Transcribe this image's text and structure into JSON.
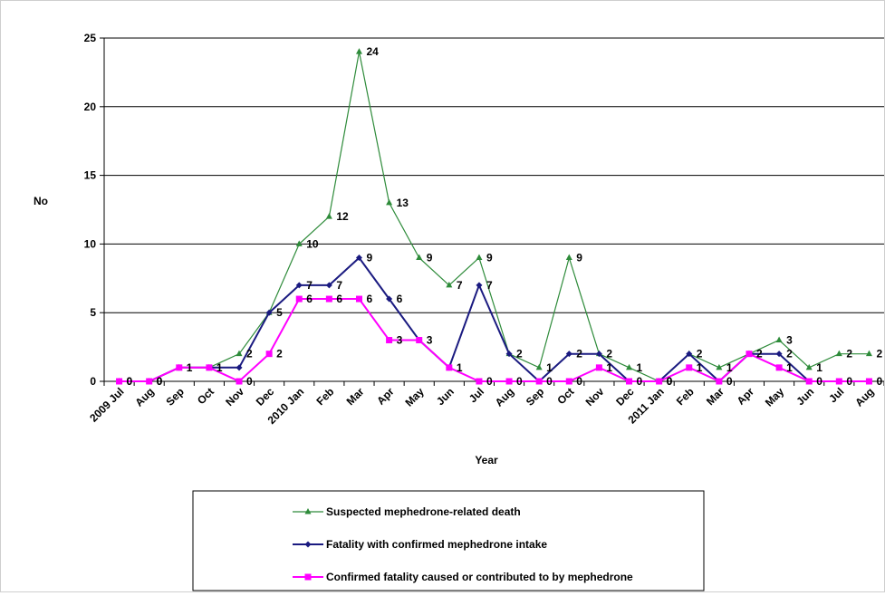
{
  "chart_data": {
    "type": "line",
    "title": "",
    "xlabel": "Year",
    "ylabel": "No",
    "ylim": [
      0,
      25
    ],
    "yticks": [
      0,
      5,
      10,
      15,
      20,
      25
    ],
    "grid": "horizontal",
    "legend_position": "bottom",
    "categories": [
      "2009 Jul",
      "Aug",
      "Sep",
      "Oct",
      "Nov",
      "Dec",
      "2010 Jan",
      "Feb",
      "Mar",
      "Apr",
      "May",
      "Jun",
      "Jul",
      "Aug",
      "Sep",
      "Oct",
      "Nov",
      "Dec",
      "2011 Jan",
      "Feb",
      "Mar",
      "Apr",
      "May",
      "Jun",
      "Jul",
      "Aug"
    ],
    "series": [
      {
        "name": "Suspected mephedrone-related  death",
        "color": "#2e8b3a",
        "marker": "triangle",
        "values": [
          0,
          0,
          1,
          1,
          2,
          5,
          10,
          12,
          24,
          13,
          9,
          7,
          9,
          2,
          1,
          9,
          2,
          1,
          0,
          2,
          1,
          2,
          3,
          1,
          2,
          2
        ],
        "labels": [
          0,
          0,
          1,
          1,
          2,
          null,
          10,
          12,
          24,
          13,
          9,
          7,
          9,
          2,
          1,
          9,
          2,
          1,
          0,
          2,
          1,
          2,
          3,
          1,
          2,
          2
        ]
      },
      {
        "name": "Fatality with confirmed mephedrone intake",
        "color": "#1a1a80",
        "marker": "diamond",
        "values": [
          0,
          0,
          1,
          1,
          1,
          5,
          7,
          7,
          9,
          6,
          3,
          1,
          7,
          2,
          0,
          2,
          2,
          0,
          0,
          2,
          0,
          2,
          2,
          0,
          0,
          0
        ],
        "labels": [
          null,
          null,
          null,
          null,
          null,
          5,
          7,
          7,
          9,
          6,
          null,
          null,
          7,
          null,
          null,
          2,
          null,
          null,
          null,
          null,
          null,
          null,
          2,
          null,
          null,
          null
        ]
      },
      {
        "name": "Confirmed fatality caused or contributed to by mephedrone",
        "color": "#ff00ff",
        "marker": "square",
        "values": [
          0,
          0,
          1,
          1,
          0,
          2,
          6,
          6,
          6,
          3,
          3,
          1,
          0,
          0,
          0,
          0,
          1,
          0,
          0,
          1,
          0,
          2,
          1,
          0,
          0,
          0
        ],
        "labels": [
          0,
          0,
          null,
          null,
          0,
          2,
          6,
          6,
          6,
          3,
          3,
          1,
          0,
          0,
          0,
          0,
          1,
          0,
          0,
          1,
          0,
          null,
          1,
          0,
          0,
          0
        ]
      }
    ]
  }
}
